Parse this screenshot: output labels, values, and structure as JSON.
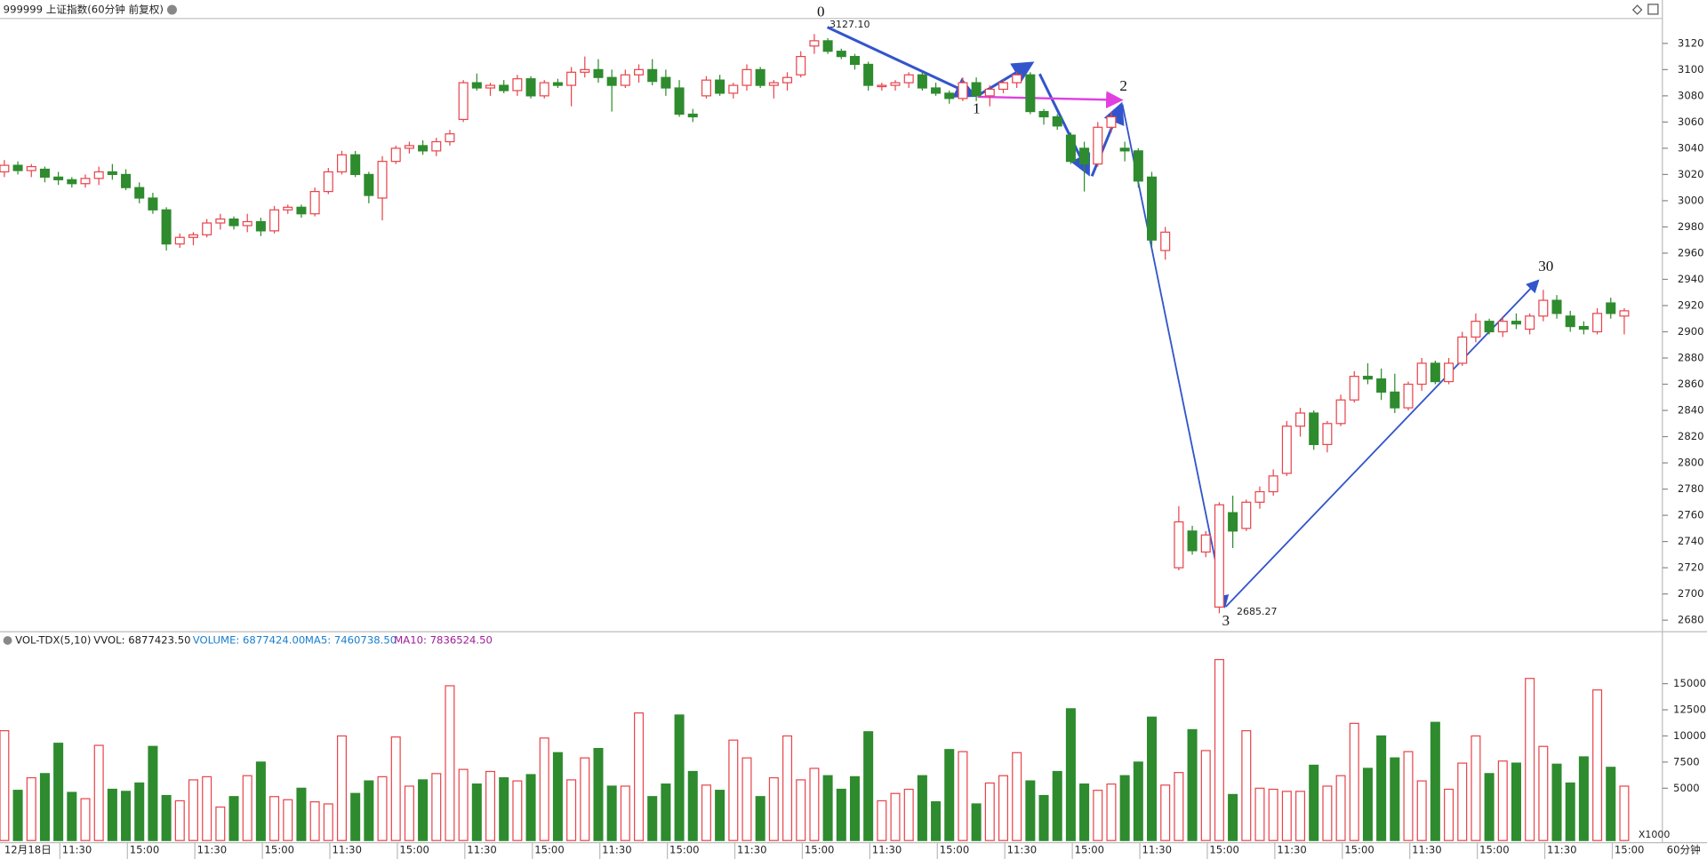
{
  "chart_data": {
    "type": "candlestick",
    "title": "999999 上证指数(60分钟 前复权)",
    "up_color": "#e8454c",
    "down_color": "#2e8b2e",
    "categories": [
      "12月18日",
      null,
      null,
      null,
      null,
      "11:30",
      null,
      null,
      null,
      null,
      "15:00",
      null,
      null,
      null,
      null,
      "11:30",
      null,
      null,
      null,
      null,
      "15:00",
      null,
      null,
      null,
      null,
      "11:30",
      null,
      null,
      null,
      null,
      "15:00",
      null,
      null,
      null,
      null,
      "11:30",
      null,
      null,
      null,
      null,
      "15:00",
      null,
      null,
      null,
      null,
      "11:30",
      null,
      null,
      null,
      null,
      "15:00",
      null,
      null,
      null,
      null,
      "11:30",
      null,
      null,
      null,
      null,
      "15:00",
      null,
      null,
      null,
      null,
      "11:30",
      null,
      null,
      null,
      null,
      "15:00",
      null,
      null,
      null,
      null,
      "11:30",
      null,
      null,
      null,
      null,
      "15:00",
      null,
      null,
      null,
      null,
      "11:30",
      null,
      null,
      null,
      null,
      "15:00",
      null,
      null,
      null,
      null,
      "11:30",
      null,
      null,
      null,
      null,
      "15:00",
      null,
      null,
      null,
      null,
      "11:30",
      null,
      null,
      null,
      null,
      "15:00",
      null,
      null,
      null,
      null,
      "11:30",
      null,
      null,
      null,
      null,
      "15:00"
    ],
    "ohlc": [
      [
        3022,
        3031,
        3018,
        3027
      ],
      [
        3027,
        3030,
        3020,
        3023
      ],
      [
        3023,
        3028,
        3018,
        3026
      ],
      [
        3024,
        3026,
        3014,
        3018
      ],
      [
        3018,
        3022,
        3012,
        3016
      ],
      [
        3016,
        3018,
        3010,
        3013
      ],
      [
        3013,
        3020,
        3010,
        3017
      ],
      [
        3017,
        3026,
        3012,
        3022
      ],
      [
        3022,
        3028,
        3016,
        3020
      ],
      [
        3020,
        3024,
        3008,
        3010
      ],
      [
        3010,
        3014,
        2998,
        3002
      ],
      [
        3002,
        3006,
        2990,
        2993
      ],
      [
        2993,
        2995,
        2962,
        2967
      ],
      [
        2967,
        2975,
        2964,
        2972
      ],
      [
        2972,
        2976,
        2966,
        2974
      ],
      [
        2974,
        2986,
        2972,
        2983
      ],
      [
        2983,
        2990,
        2978,
        2986
      ],
      [
        2986,
        2988,
        2978,
        2981
      ],
      [
        2981,
        2990,
        2976,
        2984
      ],
      [
        2984,
        2987,
        2973,
        2977
      ],
      [
        2977,
        2996,
        2975,
        2993
      ],
      [
        2993,
        2997,
        2990,
        2995
      ],
      [
        2995,
        2997,
        2987,
        2990
      ],
      [
        2990,
        3010,
        2988,
        3007
      ],
      [
        3007,
        3025,
        3005,
        3022
      ],
      [
        3022,
        3038,
        3020,
        3035
      ],
      [
        3035,
        3038,
        3018,
        3020
      ],
      [
        3020,
        3022,
        2998,
        3004
      ],
      [
        3002,
        3034,
        2985,
        3030
      ],
      [
        3030,
        3042,
        3028,
        3040
      ],
      [
        3040,
        3045,
        3036,
        3042
      ],
      [
        3042,
        3046,
        3035,
        3038
      ],
      [
        3038,
        3048,
        3034,
        3045
      ],
      [
        3045,
        3054,
        3042,
        3051
      ],
      [
        3062,
        3092,
        3060,
        3090
      ],
      [
        3090,
        3097,
        3084,
        3086
      ],
      [
        3086,
        3090,
        3080,
        3088
      ],
      [
        3088,
        3092,
        3082,
        3084
      ],
      [
        3084,
        3096,
        3080,
        3093
      ],
      [
        3093,
        3095,
        3078,
        3080
      ],
      [
        3080,
        3092,
        3078,
        3090
      ],
      [
        3090,
        3093,
        3086,
        3088
      ],
      [
        3088,
        3102,
        3072,
        3098
      ],
      [
        3098,
        3110,
        3094,
        3100
      ],
      [
        3100,
        3108,
        3090,
        3094
      ],
      [
        3094,
        3100,
        3068,
        3088
      ],
      [
        3088,
        3100,
        3086,
        3096
      ],
      [
        3096,
        3104,
        3090,
        3100
      ],
      [
        3100,
        3108,
        3088,
        3091
      ],
      [
        3094,
        3100,
        3080,
        3086
      ],
      [
        3086,
        3092,
        3064,
        3066
      ],
      [
        3066,
        3070,
        3060,
        3064
      ],
      [
        3080,
        3095,
        3078,
        3092
      ],
      [
        3092,
        3096,
        3080,
        3082
      ],
      [
        3082,
        3090,
        3078,
        3088
      ],
      [
        3088,
        3104,
        3084,
        3100
      ],
      [
        3100,
        3102,
        3086,
        3088
      ],
      [
        3088,
        3092,
        3078,
        3090
      ],
      [
        3090,
        3098,
        3084,
        3094
      ],
      [
        3096,
        3114,
        3094,
        3110
      ],
      [
        3118,
        3127.1,
        3112,
        3122
      ],
      [
        3122,
        3124,
        3112,
        3114
      ],
      [
        3114,
        3116,
        3108,
        3110
      ],
      [
        3110,
        3112,
        3100,
        3104
      ],
      [
        3104,
        3106,
        3084,
        3088
      ],
      [
        3087,
        3090,
        3084,
        3088
      ],
      [
        3088,
        3092,
        3084,
        3090
      ],
      [
        3090,
        3098,
        3086,
        3096
      ],
      [
        3096,
        3098,
        3084,
        3086
      ],
      [
        3086,
        3090,
        3080,
        3082
      ],
      [
        3082,
        3084,
        3074,
        3078
      ],
      [
        3078,
        3094,
        3076,
        3090
      ],
      [
        3090,
        3094,
        3076,
        3080
      ],
      [
        3080,
        3088,
        3072,
        3085
      ],
      [
        3085,
        3092,
        3082,
        3090
      ],
      [
        3090,
        3098,
        3086,
        3096
      ],
      [
        3096,
        3098,
        3066,
        3068
      ],
      [
        3068,
        3070,
        3058,
        3064
      ],
      [
        3064,
        3066,
        3054,
        3057
      ],
      [
        3050,
        3052,
        3028,
        3030
      ],
      [
        3040,
        3045,
        3007,
        3028
      ],
      [
        3028,
        3060,
        3026,
        3056
      ],
      [
        3056,
        3068,
        3052,
        3064
      ],
      [
        3040,
        3045,
        3030,
        3038
      ],
      [
        3038,
        3040,
        3010,
        3015
      ],
      [
        3018,
        3022,
        2965,
        2970
      ],
      [
        2962,
        2980,
        2955,
        2976
      ],
      [
        2720,
        2767,
        2718,
        2755
      ],
      [
        2748,
        2752,
        2730,
        2733
      ],
      [
        2732,
        2748,
        2728,
        2745
      ],
      [
        2690,
        2770,
        2685.27,
        2768
      ],
      [
        2762,
        2775,
        2735,
        2748
      ],
      [
        2750,
        2772,
        2748,
        2770
      ],
      [
        2770,
        2782,
        2765,
        2778
      ],
      [
        2778,
        2795,
        2775,
        2790
      ],
      [
        2792,
        2832,
        2790,
        2828
      ],
      [
        2828,
        2842,
        2820,
        2838
      ],
      [
        2838,
        2840,
        2810,
        2814
      ],
      [
        2814,
        2832,
        2808,
        2830
      ],
      [
        2830,
        2852,
        2828,
        2848
      ],
      [
        2848,
        2870,
        2846,
        2866
      ],
      [
        2866,
        2876,
        2860,
        2864
      ],
      [
        2864,
        2872,
        2848,
        2854
      ],
      [
        2854,
        2868,
        2838,
        2842
      ],
      [
        2842,
        2862,
        2840,
        2860
      ],
      [
        2860,
        2880,
        2855,
        2876
      ],
      [
        2876,
        2878,
        2860,
        2862
      ],
      [
        2862,
        2880,
        2860,
        2876
      ],
      [
        2876,
        2900,
        2874,
        2896
      ],
      [
        2896,
        2914,
        2892,
        2908
      ],
      [
        2908,
        2910,
        2898,
        2900
      ],
      [
        2900,
        2912,
        2896,
        2908
      ],
      [
        2908,
        2914,
        2902,
        2906
      ],
      [
        2902,
        2914,
        2898,
        2912
      ],
      [
        2912,
        2932,
        2908,
        2924
      ],
      [
        2924,
        2928,
        2910,
        2914
      ],
      [
        2912,
        2916,
        2900,
        2904
      ],
      [
        2904,
        2908,
        2898,
        2902
      ],
      [
        2900,
        2918,
        2898,
        2914
      ],
      [
        2922,
        2926,
        2910,
        2914
      ],
      [
        2912,
        2918,
        2898,
        2916
      ]
    ],
    "ylim": [
      2672,
      3139
    ],
    "yticks": [
      2680,
      2700,
      2720,
      2740,
      2760,
      2780,
      2800,
      2820,
      2840,
      2860,
      2880,
      2900,
      2920,
      2940,
      2960,
      2980,
      3000,
      3020,
      3040,
      3060,
      3080,
      3100,
      3120
    ],
    "high_label": "3127.10",
    "low_label": "2685.27",
    "waves": [
      "0",
      "1",
      "2",
      "3",
      "30"
    ],
    "period_label": "60分钟",
    "volume": {
      "title": "VOL-TDX(5,10)",
      "vvol": "VVOL: 6877423.50",
      "volume_text": "VOLUME: 6877424.00",
      "ma5_text": "MA5: 7460738.50",
      "ma10_text": "MA10: 7836524.50",
      "unit_label": "X1000",
      "values": [
        10500,
        4800,
        6000,
        6400,
        9300,
        4600,
        4000,
        9100,
        4900,
        4700,
        5500,
        9000,
        4300,
        3800,
        5800,
        6100,
        3200,
        4200,
        6200,
        7500,
        4200,
        3900,
        5000,
        3700,
        3500,
        10000,
        4500,
        5700,
        6100,
        9900,
        5200,
        5800,
        6400,
        14800,
        6800,
        5400,
        6600,
        6000,
        5700,
        6300,
        9800,
        8400,
        5800,
        7900,
        8800,
        5200,
        5200,
        12200,
        4200,
        5400,
        12000,
        6600,
        5300,
        4800,
        9600,
        7900,
        4200,
        6000,
        10000,
        5800,
        6900,
        6200,
        4900,
        6100,
        10400,
        3800,
        4500,
        4900,
        6200,
        3700,
        8700,
        8500,
        3500,
        5500,
        6200,
        8400,
        5700,
        4300,
        6600,
        12600,
        5400,
        4800,
        5400,
        6200,
        7500,
        11800,
        5300,
        6500,
        10600,
        8600,
        17300,
        4400,
        10500,
        5000,
        4900,
        4700,
        4700,
        7200,
        5200,
        6200,
        11200,
        6900,
        10000,
        7900,
        8500,
        5700,
        11300,
        4900,
        7400,
        10000,
        6400,
        7600,
        7400,
        15500,
        9000,
        7300,
        5500,
        8000,
        14400,
        7000,
        5200
      ],
      "ylim": [
        0,
        18300
      ],
      "yticks": [
        5000,
        7500,
        10000,
        12500,
        15000
      ]
    }
  }
}
